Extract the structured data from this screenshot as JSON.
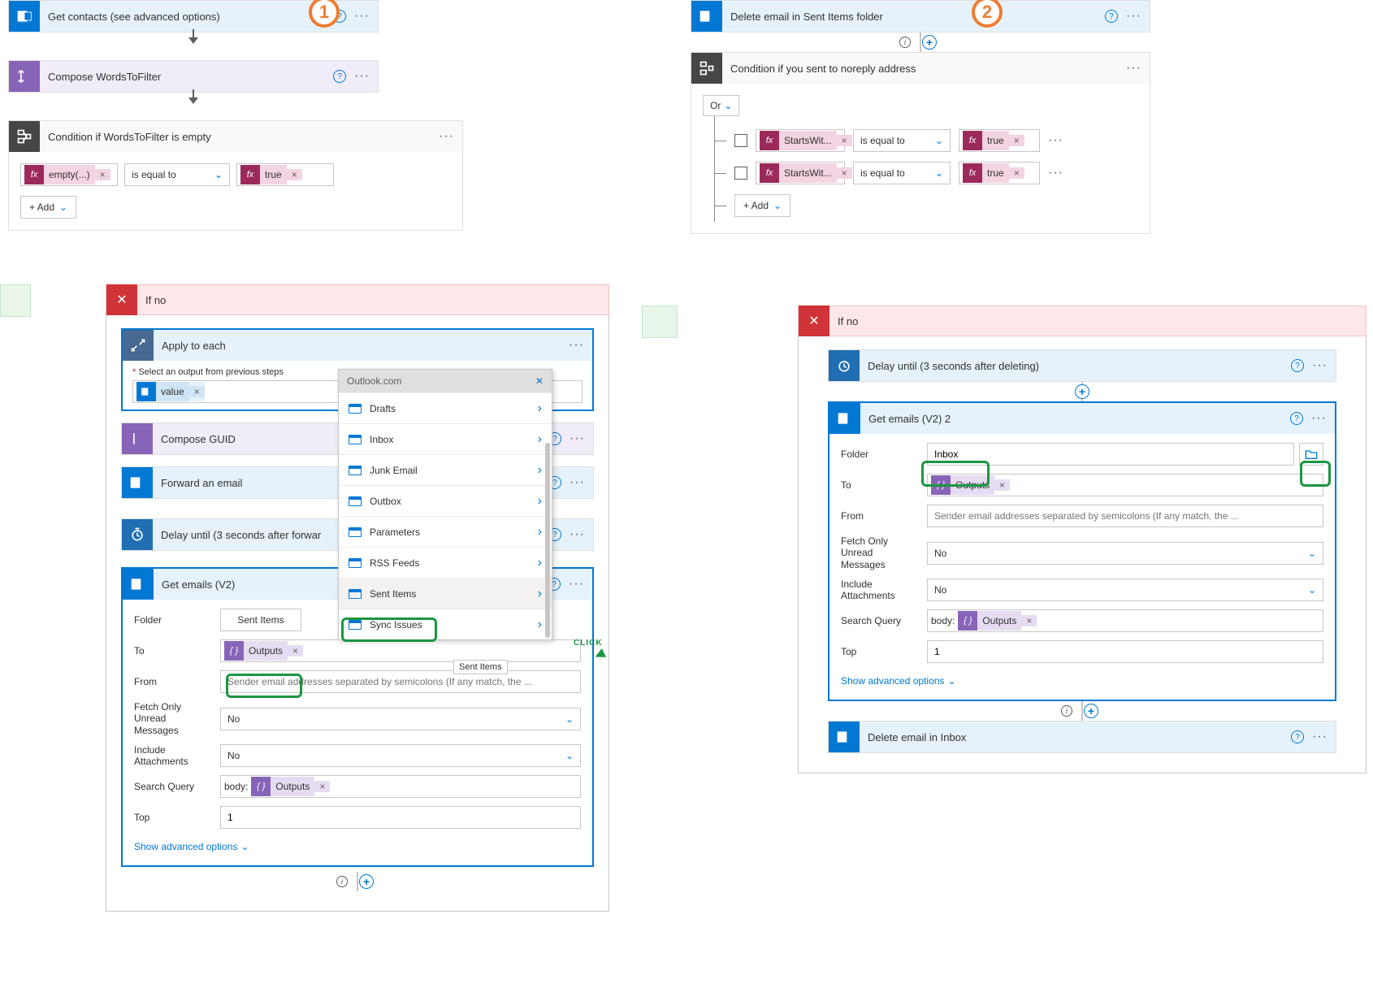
{
  "colors": {
    "outlook": "#0078d4",
    "compose": "#8764b8",
    "condition": "#484644",
    "loop": "#486991",
    "delay": "#1f6fb2",
    "ifno_bg": "#fde7e9",
    "ifno_close": "#d13438",
    "badge": "#ed7d31",
    "fx_bg": "#9b2a5b",
    "fx_txt": "#f3d4e3",
    "green": "#1a9641"
  },
  "badges": {
    "one": "1",
    "two": "2"
  },
  "left": {
    "get_contacts": "Get contacts (see advanced options)",
    "compose_words": "Compose WordsToFilter",
    "cond_words": "Condition if WordsToFilter is empty",
    "cond_row": {
      "expr": "empty(...)",
      "op": "is equal to",
      "val": "true"
    },
    "add": "+  Add",
    "ifno": "If no",
    "apply": "Apply to each",
    "select_output_label": "Select an output from previous steps",
    "value_token": "value",
    "compose_guid": "Compose GUID",
    "forward": "Forward an email",
    "delay": "Delay until (3 seconds after forwar",
    "get_emails": "Get emails (V2)",
    "form": {
      "folder_lbl": "Folder",
      "folder_val": "Sent Items",
      "to_lbl": "To",
      "to_token": "Outputs",
      "from_lbl": "From",
      "from_ph": "Sender email addresses separated by semicolons (If any match, the ...",
      "fetch_lbl": "Fetch Only Unread Messages",
      "fetch_val": "No",
      "incl_lbl": "Include Attachments",
      "incl_val": "No",
      "search_lbl": "Search Query",
      "search_prefix": "body:",
      "search_token": "Outputs",
      "top_lbl": "Top",
      "top_val": "1",
      "advanced": "Show advanced options"
    },
    "picker": {
      "title": "Outlook.com",
      "items": [
        "Drafts",
        "Inbox",
        "Junk Email",
        "Outbox",
        "Parameters",
        "RSS Feeds",
        "Sent Items",
        "Sync Issues"
      ],
      "tooltip": "Sent Items"
    },
    "click": "CLICK"
  },
  "right": {
    "delete_sent": "Delete email in Sent Items folder",
    "cond_noreply": "Condition if you sent to noreply address",
    "or": "Or",
    "row": {
      "expr": "StartsWit...",
      "op": "is equal to",
      "val": "true"
    },
    "add": "+  Add",
    "ifno": "If no",
    "delay": "Delay until (3 seconds after deleting)",
    "get_emails2": "Get emails (V2) 2",
    "form": {
      "folder_lbl": "Folder",
      "folder_val": "Inbox",
      "to_lbl": "To",
      "to_token": "Outputs",
      "from_lbl": "From",
      "from_ph": "Sender email addresses separated by semicolons (If any match, the ...",
      "fetch_lbl": "Fetch Only Unread Messages",
      "fetch_val": "No",
      "incl_lbl": "Include Attachments",
      "incl_val": "No",
      "search_lbl": "Search Query",
      "search_prefix": "body:",
      "search_token": "Outputs",
      "top_lbl": "Top",
      "top_val": "1",
      "advanced": "Show advanced options"
    },
    "delete_inbox": "Delete email in Inbox"
  }
}
